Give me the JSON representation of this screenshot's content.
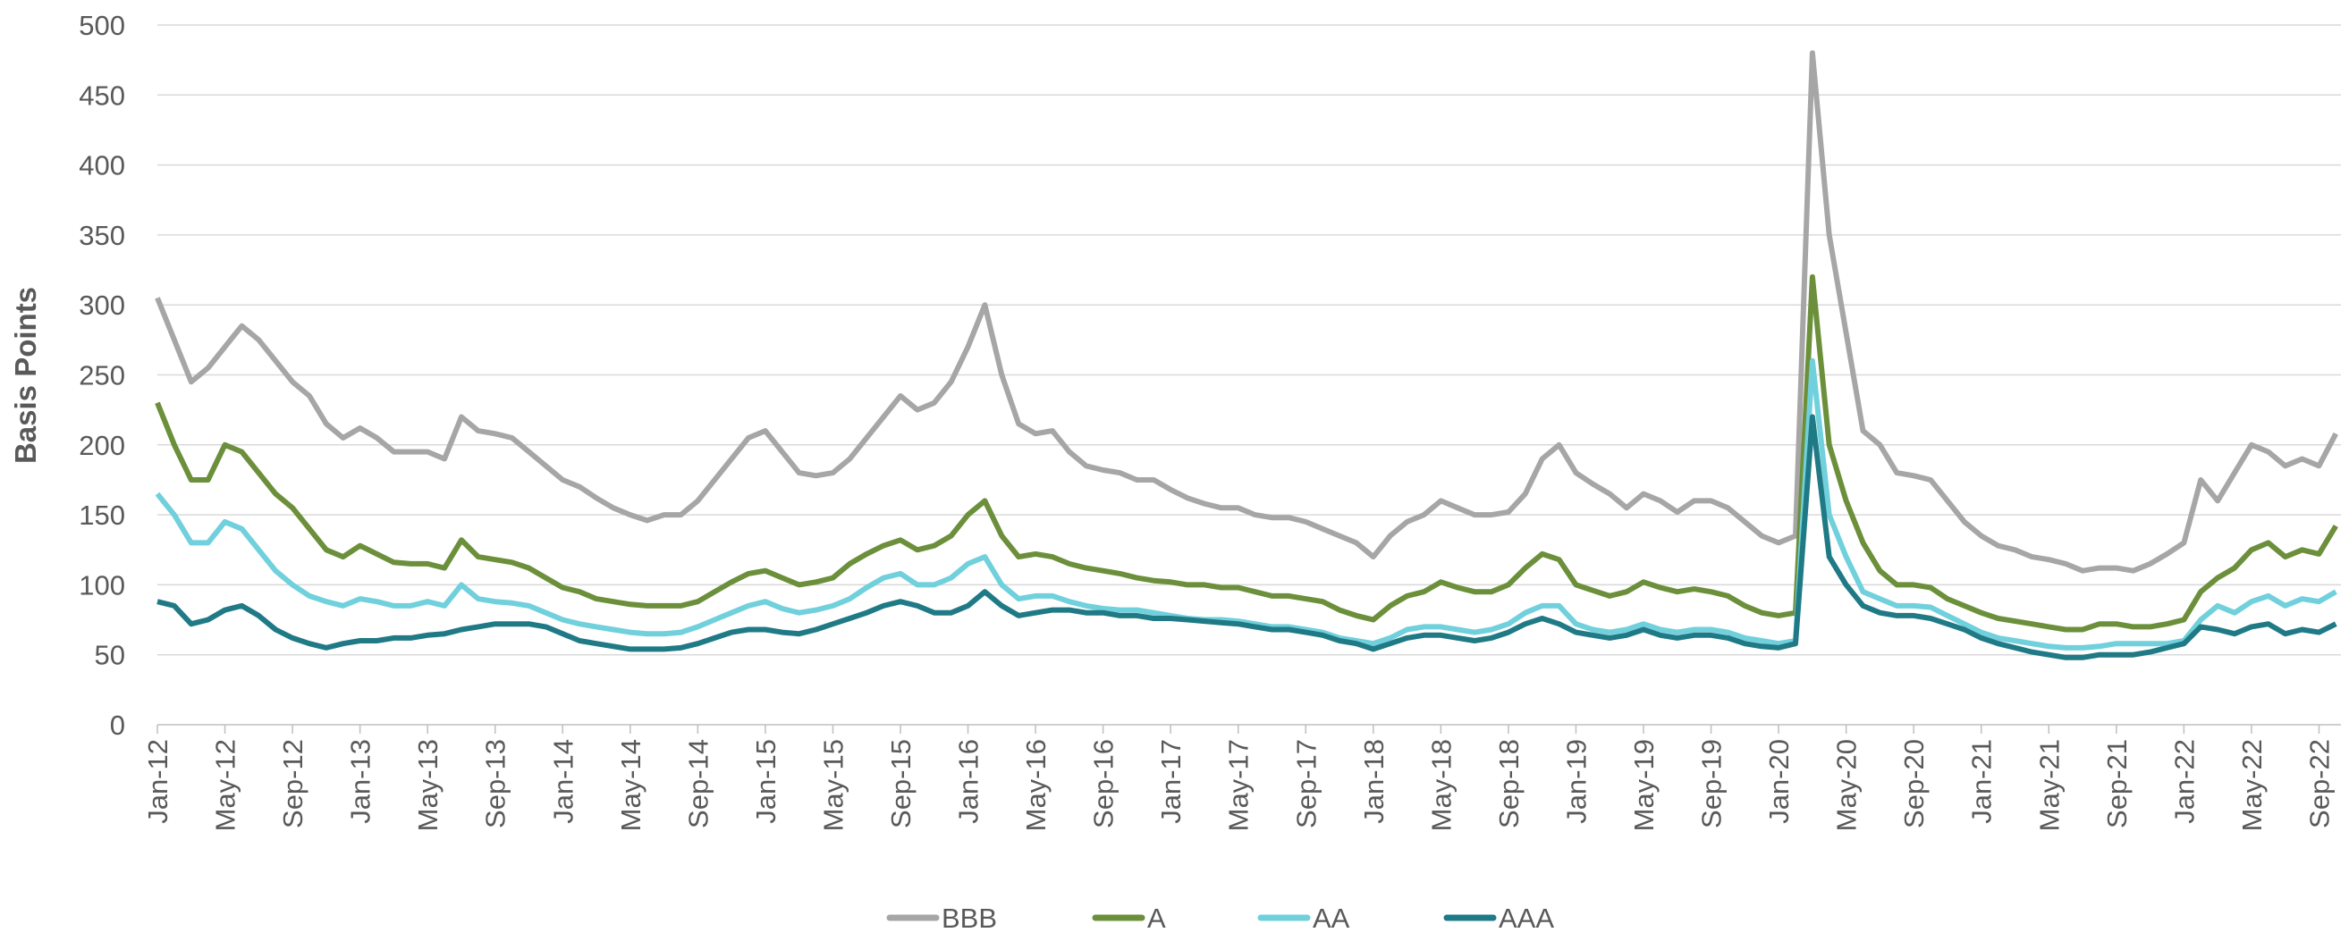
{
  "chart_data": {
    "type": "line",
    "y_label": "Basis Points",
    "categories": [
      "Jan-12",
      null,
      null,
      null,
      "May-12",
      null,
      null,
      null,
      "Sep-12",
      null,
      null,
      null,
      "Jan-13",
      null,
      null,
      null,
      "May-13",
      null,
      null,
      null,
      "Sep-13",
      null,
      null,
      null,
      "Jan-14",
      null,
      null,
      null,
      "May-14",
      null,
      null,
      null,
      "Sep-14",
      null,
      null,
      null,
      "Jan-15",
      null,
      null,
      null,
      "May-15",
      null,
      null,
      null,
      "Sep-15",
      null,
      null,
      null,
      "Jan-16",
      null,
      null,
      null,
      "May-16",
      null,
      null,
      null,
      "Sep-16",
      null,
      null,
      null,
      "Jan-17",
      null,
      null,
      null,
      "May-17",
      null,
      null,
      null,
      "Sep-17",
      null,
      null,
      null,
      "Jan-18",
      null,
      null,
      null,
      "May-18",
      null,
      null,
      null,
      "Sep-18",
      null,
      null,
      null,
      "Jan-19",
      null,
      null,
      null,
      "May-19",
      null,
      null,
      null,
      "Sep-19",
      null,
      null,
      null,
      "Jan-20",
      null,
      null,
      null,
      "May-20",
      null,
      null,
      null,
      "Sep-20",
      null,
      null,
      null,
      "Jan-21",
      null,
      null,
      null,
      "May-21",
      null,
      null,
      null,
      "Sep-21",
      null,
      null,
      null,
      "Jan-22",
      null,
      null,
      null,
      "May-22",
      null,
      null,
      null,
      "Sep-22",
      null
    ],
    "series": [
      {
        "name": "BBB",
        "color": "#a6a6a6",
        "values": [
          305,
          275,
          245,
          255,
          270,
          285,
          275,
          260,
          245,
          235,
          215,
          205,
          212,
          205,
          195,
          195,
          195,
          190,
          220,
          210,
          208,
          205,
          195,
          185,
          175,
          170,
          162,
          155,
          150,
          146,
          150,
          150,
          160,
          175,
          190,
          205,
          210,
          195,
          180,
          178,
          180,
          190,
          205,
          220,
          235,
          225,
          230,
          245,
          270,
          300,
          250,
          215,
          208,
          210,
          195,
          185,
          182,
          180,
          175,
          175,
          168,
          162,
          158,
          155,
          155,
          150,
          148,
          148,
          145,
          140,
          135,
          130,
          120,
          135,
          145,
          150,
          160,
          155,
          150,
          150,
          152,
          165,
          190,
          200,
          180,
          172,
          165,
          155,
          165,
          160,
          152,
          160,
          160,
          155,
          145,
          135,
          130,
          135,
          480,
          350,
          280,
          210,
          200,
          180,
          178,
          175,
          160,
          145,
          135,
          128,
          125,
          120,
          118,
          115,
          110,
          112,
          112,
          110,
          115,
          122,
          130,
          175,
          160,
          180,
          200,
          195,
          185,
          190,
          185,
          208
        ]
      },
      {
        "name": "A",
        "color": "#6b8f3a",
        "values": [
          230,
          200,
          175,
          175,
          200,
          195,
          180,
          165,
          155,
          140,
          125,
          120,
          128,
          122,
          116,
          115,
          115,
          112,
          132,
          120,
          118,
          116,
          112,
          105,
          98,
          95,
          90,
          88,
          86,
          85,
          85,
          85,
          88,
          95,
          102,
          108,
          110,
          105,
          100,
          102,
          105,
          115,
          122,
          128,
          132,
          125,
          128,
          135,
          150,
          160,
          135,
          120,
          122,
          120,
          115,
          112,
          110,
          108,
          105,
          103,
          102,
          100,
          100,
          98,
          98,
          95,
          92,
          92,
          90,
          88,
          82,
          78,
          75,
          85,
          92,
          95,
          102,
          98,
          95,
          95,
          100,
          112,
          122,
          118,
          100,
          96,
          92,
          95,
          102,
          98,
          95,
          97,
          95,
          92,
          85,
          80,
          78,
          80,
          320,
          200,
          160,
          130,
          110,
          100,
          100,
          98,
          90,
          85,
          80,
          76,
          74,
          72,
          70,
          68,
          68,
          72,
          72,
          70,
          70,
          72,
          75,
          95,
          105,
          112,
          125,
          130,
          120,
          125,
          122,
          142
        ]
      },
      {
        "name": "AA",
        "color": "#70d0dc",
        "values": [
          165,
          150,
          130,
          130,
          145,
          140,
          125,
          110,
          100,
          92,
          88,
          85,
          90,
          88,
          85,
          85,
          88,
          85,
          100,
          90,
          88,
          87,
          85,
          80,
          75,
          72,
          70,
          68,
          66,
          65,
          65,
          66,
          70,
          75,
          80,
          85,
          88,
          83,
          80,
          82,
          85,
          90,
          98,
          105,
          108,
          100,
          100,
          105,
          115,
          120,
          100,
          90,
          92,
          92,
          88,
          85,
          83,
          82,
          82,
          80,
          78,
          76,
          75,
          75,
          74,
          72,
          70,
          70,
          68,
          66,
          62,
          60,
          58,
          62,
          68,
          70,
          70,
          68,
          66,
          68,
          72,
          80,
          85,
          85,
          72,
          68,
          66,
          68,
          72,
          68,
          66,
          68,
          68,
          66,
          62,
          60,
          58,
          60,
          260,
          150,
          120,
          95,
          90,
          85,
          85,
          84,
          78,
          72,
          66,
          62,
          60,
          58,
          56,
          55,
          55,
          56,
          58,
          58,
          58,
          58,
          60,
          75,
          85,
          80,
          88,
          92,
          85,
          90,
          88,
          95
        ]
      },
      {
        "name": "AAA",
        "color": "#1f7a86",
        "values": [
          88,
          85,
          72,
          75,
          82,
          85,
          78,
          68,
          62,
          58,
          55,
          58,
          60,
          60,
          62,
          62,
          64,
          65,
          68,
          70,
          72,
          72,
          72,
          70,
          65,
          60,
          58,
          56,
          54,
          54,
          54,
          55,
          58,
          62,
          66,
          68,
          68,
          66,
          65,
          68,
          72,
          76,
          80,
          85,
          88,
          85,
          80,
          80,
          85,
          95,
          85,
          78,
          80,
          82,
          82,
          80,
          80,
          78,
          78,
          76,
          76,
          75,
          74,
          73,
          72,
          70,
          68,
          68,
          66,
          64,
          60,
          58,
          54,
          58,
          62,
          64,
          64,
          62,
          60,
          62,
          66,
          72,
          76,
          72,
          66,
          64,
          62,
          64,
          68,
          64,
          62,
          64,
          64,
          62,
          58,
          56,
          55,
          58,
          220,
          120,
          100,
          85,
          80,
          78,
          78,
          76,
          72,
          68,
          62,
          58,
          55,
          52,
          50,
          48,
          48,
          50,
          50,
          50,
          52,
          55,
          58,
          70,
          68,
          65,
          70,
          72,
          65,
          68,
          66,
          72
        ]
      }
    ],
    "ylim": [
      0,
      500
    ],
    "yticks": [
      0,
      50,
      100,
      150,
      200,
      250,
      300,
      350,
      400,
      450,
      500
    ],
    "grid": true
  }
}
